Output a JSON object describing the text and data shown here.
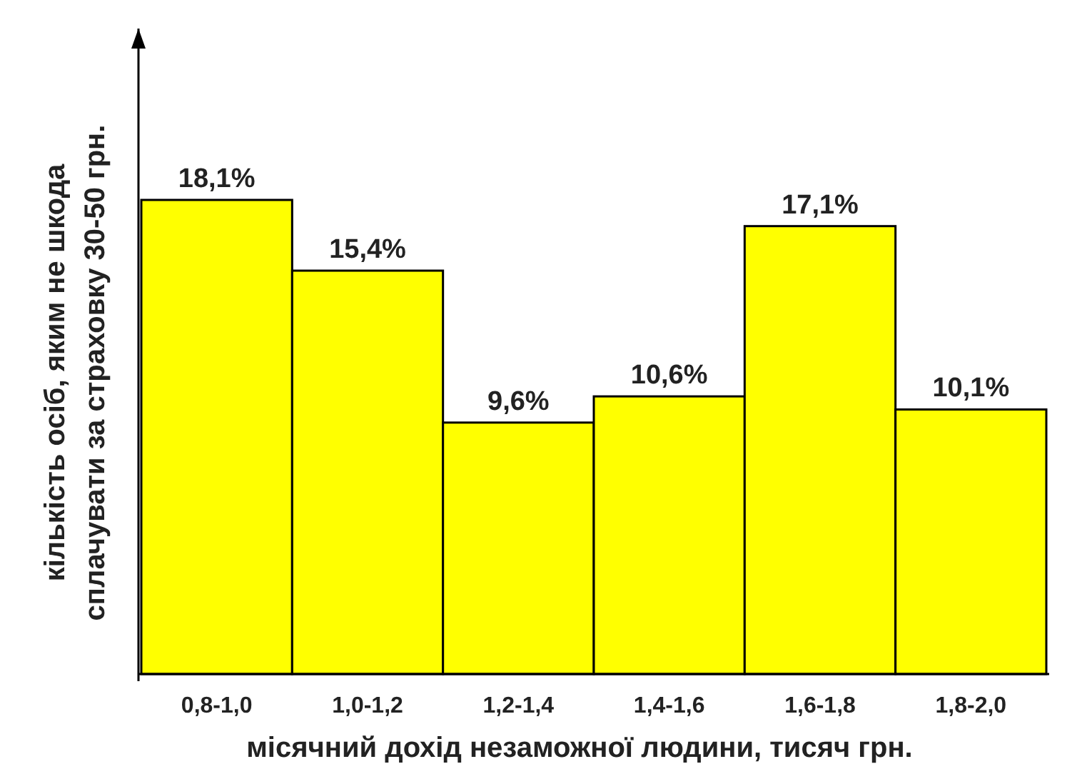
{
  "chart_data": {
    "type": "bar",
    "xlabel": "місячний дохід незаможної людини, тисяч грн.",
    "ylabel": "кількість осіб, яким не шкода\nсплачувати за страховку 30-50 грн.",
    "categories": [
      "0,8-1,0",
      "1,0-1,2",
      "1,2-1,4",
      "1,4-1,6",
      "1,6-1,8",
      "1,8-2,0"
    ],
    "values": [
      18.1,
      15.4,
      9.6,
      10.6,
      17.1,
      10.1
    ],
    "value_labels": [
      "18,1%",
      "15,4%",
      "9,6%",
      "10,6%",
      "17,1%",
      "10,1%"
    ],
    "color": "#ffff00"
  }
}
